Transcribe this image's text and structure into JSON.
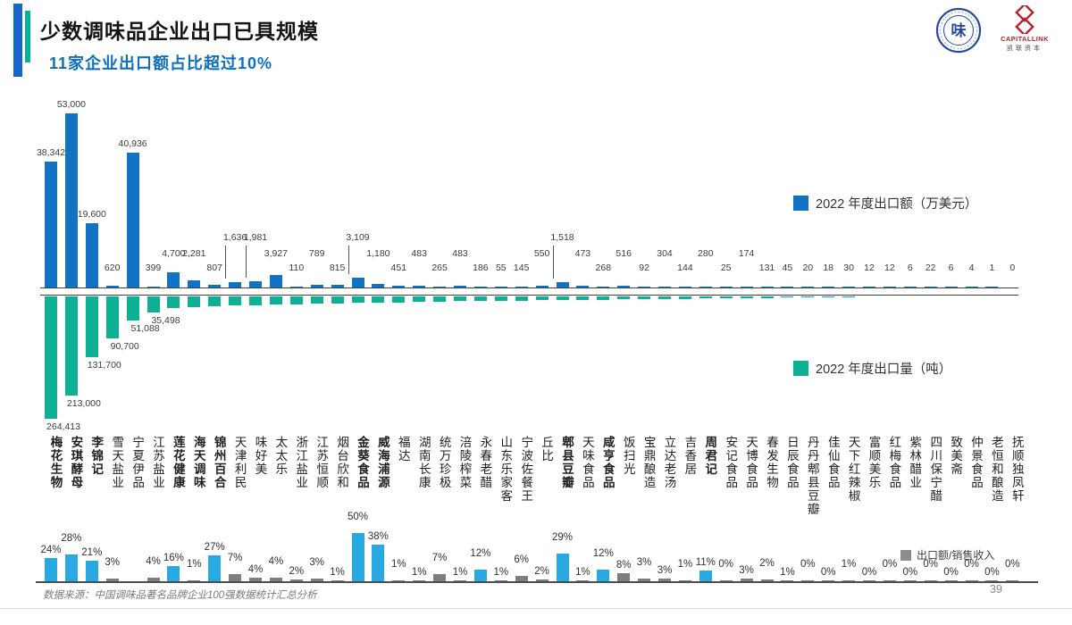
{
  "header": {
    "title": "少数调味品企业出口已具规模",
    "subtitle": "11家企业出口额占比超过10%",
    "logo_seal_char": "味",
    "logo_capitallink": "CAPITALLINK",
    "logo_capitallink_sub": "凯联资本"
  },
  "footer": {
    "source": "数据来源：中国调味品著名品牌企业100强数据统计汇总分析",
    "page": "39"
  },
  "chart_data": {
    "type": "bar",
    "categories": [
      "梅花生物",
      "安琪酵母",
      "李锦记",
      "雪天盐业",
      "宁夏伊品",
      "江苏盐业",
      "莲花健康",
      "海天调味",
      "锦州百合",
      "天津利民",
      "味好美",
      "太太乐",
      "浙江盐业",
      "江苏恒顺",
      "烟台欣和",
      "金葵食品",
      "威海浦源",
      "福达",
      "湖南长康",
      "统万珍极",
      "涪陵榨菜",
      "永春老醋",
      "山东乐家客",
      "宁波佐餐王",
      "丘比",
      "郫县豆瓣",
      "天味食品",
      "咸亨食品",
      "饭扫光",
      "宝鼎酿造",
      "立达老汤",
      "吉香居",
      "周君记",
      "安记食品",
      "天博食品",
      "春发生物",
      "日辰食品",
      "丹丹郫县豆瓣",
      "佳仙食品",
      "天下红辣椒",
      "富顺美乐",
      "红梅食品",
      "紫林醋业",
      "四川保宁醋",
      "致美斋",
      "仲景食品",
      "老恒和酿造",
      "抚顺独凤轩"
    ],
    "bold_flags": [
      1,
      1,
      1,
      0,
      0,
      0,
      1,
      1,
      1,
      0,
      0,
      0,
      0,
      0,
      0,
      1,
      1,
      0,
      0,
      0,
      0,
      0,
      0,
      0,
      0,
      1,
      0,
      1,
      0,
      0,
      0,
      0,
      1,
      0,
      0,
      0,
      0,
      0,
      0,
      0,
      0,
      0,
      0,
      0,
      0,
      0,
      0,
      0
    ],
    "series": [
      {
        "name": "2022 年度出口额（万美元）",
        "color": "#1272c4",
        "unit": "万美元",
        "values": [
          38342,
          53000,
          19600,
          620,
          40936,
          399,
          4700,
          2281,
          807,
          1636,
          1981,
          3927,
          110,
          789,
          815,
          3109,
          1180,
          451,
          483,
          265,
          483,
          186,
          55,
          145,
          550,
          1518,
          473,
          268,
          516,
          92,
          304,
          144,
          280,
          25,
          174,
          131,
          45,
          20,
          18,
          30,
          12,
          12,
          6,
          22,
          6,
          4,
          1,
          0
        ],
        "labels": [
          "38,342",
          "53,000",
          "19,600",
          "620",
          "40,936",
          "399",
          "4,700",
          "2,281",
          "807",
          "1,636",
          "1,981",
          "3,927",
          "110",
          "789",
          "815",
          "3,109",
          "1,180",
          "451",
          "483",
          "265",
          "483",
          "186",
          "55",
          "145",
          "550",
          "1,518",
          "473",
          "268",
          "516",
          "92",
          "304",
          "144",
          "280",
          "25",
          "174",
          "131",
          "45",
          "20",
          "18",
          "30",
          "12",
          "12",
          "6",
          "22",
          "6",
          "4",
          "1",
          "0"
        ]
      },
      {
        "name": "2022 年度出口量（吨）",
        "color": "#0db093",
        "unit": "吨",
        "values": [
          264413,
          213000,
          131700,
          90700,
          51088,
          35498,
          25000,
          23000,
          21500,
          20000,
          19000,
          18000,
          17000,
          16000,
          15000,
          14000,
          13000,
          12500,
          12000,
          11500,
          10500,
          10000,
          9500,
          9000,
          8500,
          8000,
          7500,
          7000,
          6500,
          6000,
          5500,
          5000,
          4500,
          4000,
          3500,
          3000,
          2500,
          2000,
          1600,
          1300,
          1000,
          800,
          600,
          450,
          300,
          200,
          100,
          0
        ],
        "labels": [
          "264,413",
          "213,000",
          "131,700",
          "90,700",
          "51,088",
          "35,498"
        ],
        "labeled_points": 6,
        "estimated_from_index": 6
      },
      {
        "name": "出口额/销售收入",
        "color": "#7f7f7f",
        "highlight_color": "#29a9e1",
        "highlight_threshold_pct": 10,
        "unit": "%",
        "values": [
          24,
          28,
          21,
          3,
          null,
          4,
          16,
          1,
          27,
          7,
          4,
          4,
          2,
          3,
          1,
          50,
          38,
          1,
          1,
          7,
          1,
          12,
          1,
          6,
          2,
          29,
          1,
          12,
          8,
          3,
          3,
          1,
          11,
          0,
          3,
          2,
          1,
          0,
          0,
          1,
          0,
          0,
          0,
          0,
          0,
          0,
          0,
          0
        ]
      }
    ],
    "layout": {
      "legend_position": "right-inline",
      "grid": false,
      "callout_indices": [
        9,
        10,
        15,
        25
      ],
      "upper_label_indices": [
        6,
        7,
        11,
        13,
        16,
        18,
        20,
        24,
        26,
        28,
        30,
        32,
        34
      ]
    }
  }
}
